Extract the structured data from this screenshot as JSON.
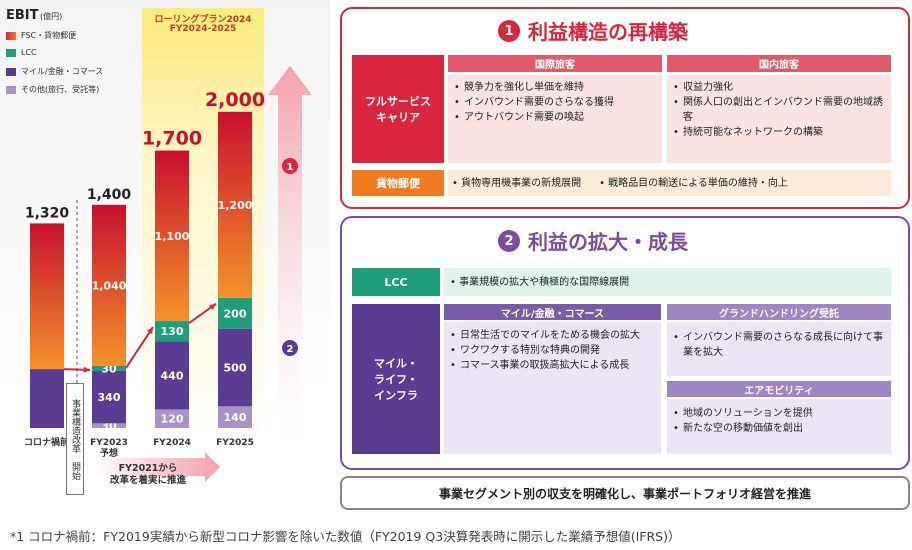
{
  "chart_data": {
    "type": "bar",
    "title": "EBIT",
    "unit": "(億円)",
    "categories": [
      "コロナ禍前*1",
      "FY2023\n予想",
      "FY2024",
      "FY2025"
    ],
    "series": [
      {
        "name": "FSC・貨物郵便",
        "values": [
          null,
          1040,
          1100,
          1200
        ],
        "color": "#f07a1e"
      },
      {
        "name": "LCC",
        "values": [
          null,
          30,
          130,
          200
        ],
        "color": "#1f9e7c"
      },
      {
        "name": "マイル/金融・コマース",
        "values": [
          null,
          340,
          440,
          500
        ],
        "color": "#5b3c93"
      },
      {
        "name": "その他(旅行、受託等)",
        "values": [
          null,
          30,
          120,
          140
        ],
        "color": "#a892c8"
      }
    ],
    "totals": [
      1320,
      1400,
      1700,
      2000
    ],
    "total_labels": [
      "1,320",
      "1,400",
      "1,700",
      "2,000"
    ],
    "segment_labels": [
      [
        "",
        "",
        "",
        ""
      ],
      [
        "1,040",
        "30",
        "340",
        "30"
      ],
      [
        "1,100",
        "130",
        "440",
        "120"
      ],
      [
        "1,200",
        "200",
        "500",
        "140"
      ]
    ],
    "precovid_split": {
      "upper": 940,
      "lower": 380
    },
    "plan_label_1": "ローリングプラン2024",
    "plan_label_2": "FY2024-2025",
    "reform_label": "事業構造改革　開始",
    "bottom_arrow_label_1": "FY2021から",
    "bottom_arrow_label_2": "改革を着実に推進",
    "marker_1": "1",
    "marker_2": "2",
    "ylim": [
      0,
      2300
    ]
  },
  "panel1": {
    "num": "1",
    "title": "利益構造の再構築",
    "col1_header": "国際旅客",
    "col2_header": "国内旅客",
    "row1_label": "フルサービス\nキャリア",
    "col1_items": [
      "競争力を強化し単価を維持",
      "インバウンド需要のさらなる獲得",
      "アウトバウンド需要の喚起"
    ],
    "col2_items": [
      "収益力強化",
      "関係人口の創出とインバウンド需要の地域誘客",
      "持続可能なネットワークの構築"
    ],
    "row2_label": "貨物郵便",
    "row2_items": [
      "貨物専用機事業の新規展開",
      "戦略品目の輸送による単価の維持・向上"
    ]
  },
  "panel2": {
    "num": "2",
    "title": "利益の拡大・成長",
    "lcc_label": "LCC",
    "lcc_item": "事業規模の拡大や積極的な国際線展開",
    "row_label": "マイル・\nライフ・\nインフラ",
    "mile_header": "マイル/金融・コマース",
    "mile_items": [
      "日常生活でのマイルをためる機会の拡大",
      "ワクワクする特別な特典の開発",
      "コマース事業の取扱高拡大による成長"
    ],
    "gh_header": "グランドハンドリング受託",
    "gh_items": [
      "インバウンド需要のさらなる成長に向けて事業を拡大"
    ],
    "am_header": "エアモビリティ",
    "am_items": [
      "地域のソリューションを提供",
      "新たな空の移動価値を創出"
    ]
  },
  "bottom_banner": "事業セグメント別の収支を明確化し、事業ポートフォリオ経営を推進",
  "footnote": "*1 コロナ禍前：FY2019実績から新型コロナ影響を除いた数値（FY2019 Q3決算発表時に開示した業績予想値(IFRS)）",
  "colors": {
    "red": "#d7263d",
    "purple": "#7b4ca0",
    "orange": "#f07a1e",
    "teal": "#1f9e7c"
  }
}
